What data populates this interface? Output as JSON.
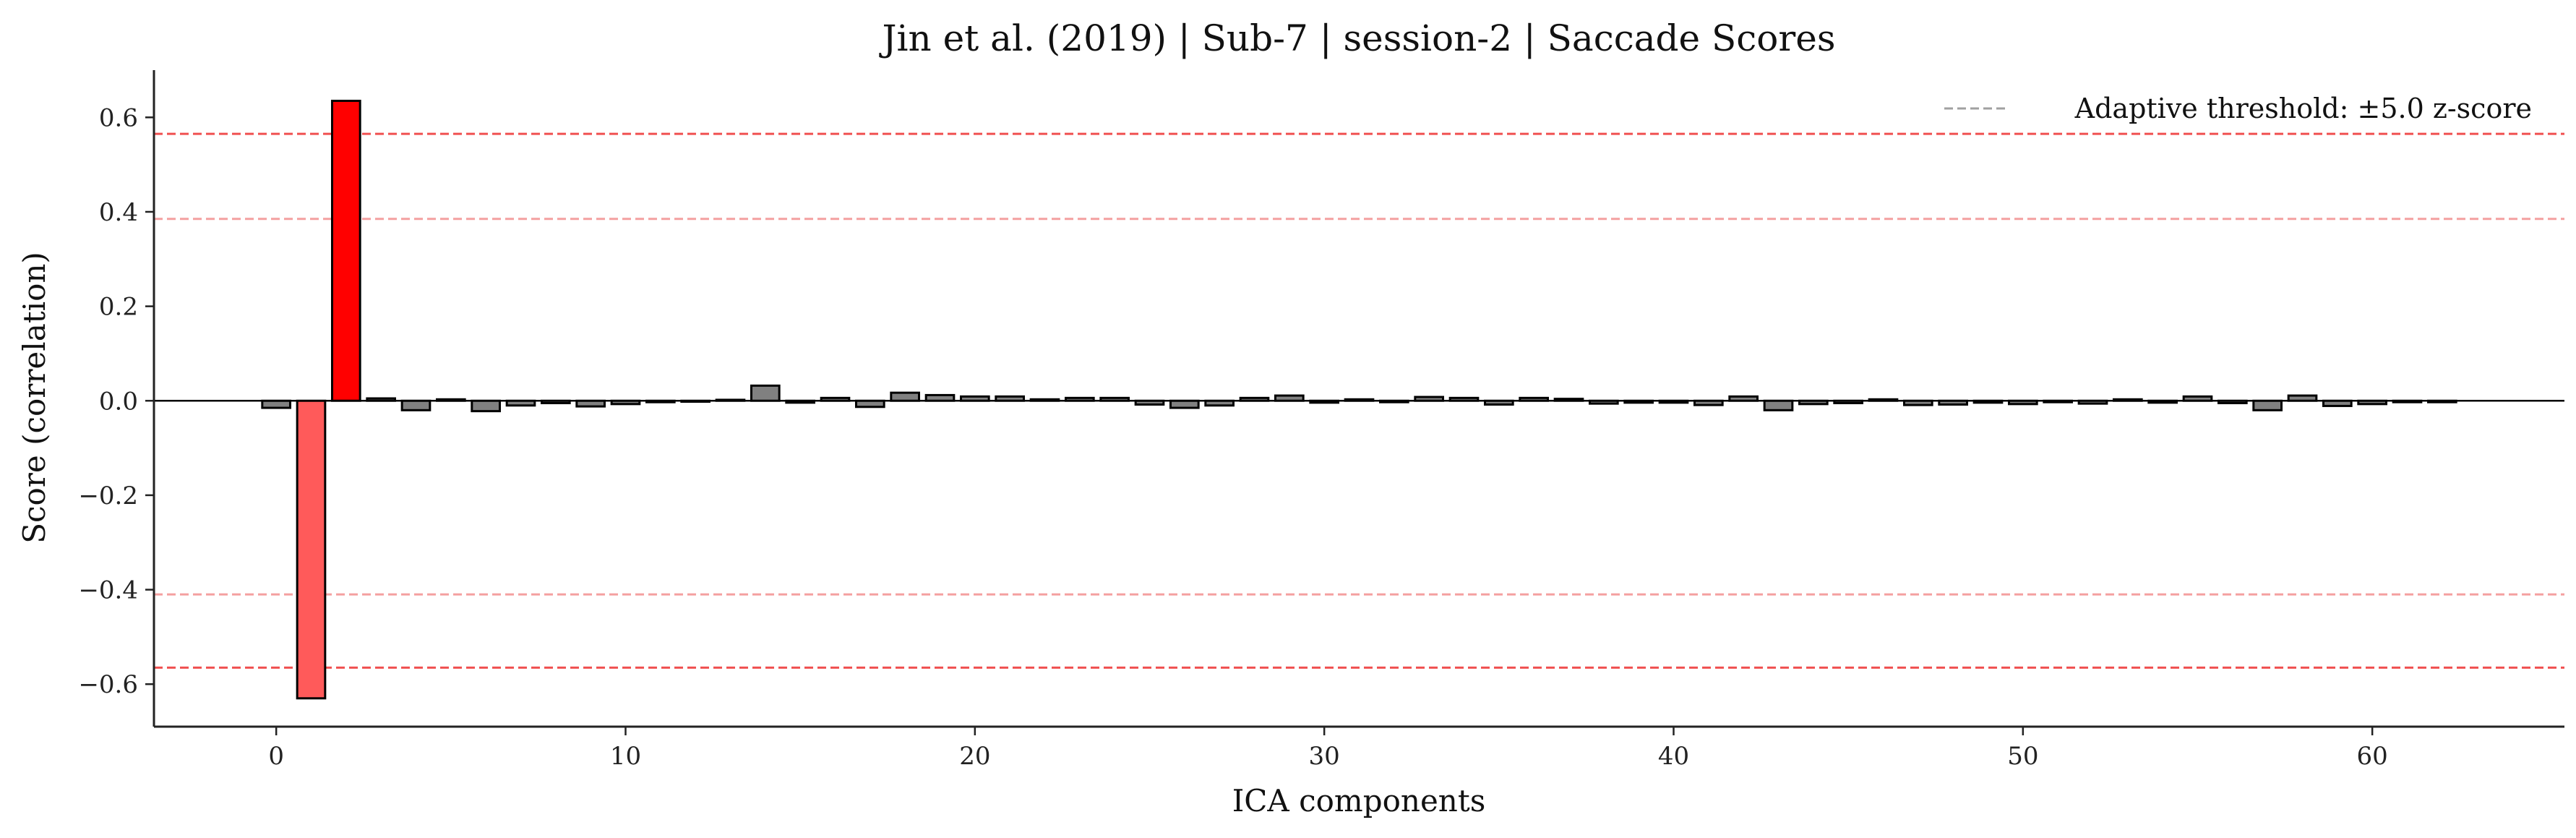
{
  "chart_data": {
    "type": "bar",
    "title": "Jin et al. (2019) | Sub-7 | session-2 | Saccade Scores",
    "xlabel": "ICA components",
    "ylabel": "Score (correlation)",
    "xlim": [
      -3.5,
      65.5
    ],
    "ylim": [
      -0.69,
      0.7
    ],
    "x_ticks": [
      0,
      10,
      20,
      30,
      40,
      50,
      60
    ],
    "y_ticks": [
      -0.6,
      -0.4,
      -0.2,
      0.0,
      0.2,
      0.4,
      0.6
    ],
    "y_tick_labels": [
      "−0.6",
      "−0.4",
      "−0.2",
      "0.0",
      "0.2",
      "0.4",
      "0.6"
    ],
    "x_tick_labels": [
      "0",
      "10",
      "20",
      "30",
      "40",
      "50",
      "60"
    ],
    "legend": {
      "label": "Adaptive threshold: ±5.0 z-score",
      "position": "top-right"
    },
    "threshold_lines": [
      {
        "y": 0.565,
        "strength": "strong"
      },
      {
        "y": 0.385,
        "strength": "weak"
      },
      {
        "y": -0.41,
        "strength": "weak"
      },
      {
        "y": -0.565,
        "strength": "strong"
      }
    ],
    "components": [
      0,
      1,
      2,
      3,
      4,
      5,
      6,
      7,
      8,
      9,
      10,
      11,
      12,
      13,
      14,
      15,
      16,
      17,
      18,
      19,
      20,
      21,
      22,
      23,
      24,
      25,
      26,
      27,
      28,
      29,
      30,
      31,
      32,
      33,
      34,
      35,
      36,
      37,
      38,
      39,
      40,
      41,
      42,
      43,
      44,
      45,
      46,
      47,
      48,
      49,
      50,
      51,
      52,
      53,
      54,
      55,
      56,
      57,
      58,
      59,
      60,
      61,
      62
    ],
    "values": [
      -0.015,
      -0.63,
      0.635,
      0.005,
      -0.02,
      0.003,
      -0.022,
      -0.01,
      -0.005,
      -0.012,
      -0.007,
      -0.003,
      -0.002,
      0.002,
      0.032,
      -0.004,
      0.006,
      -0.013,
      0.017,
      0.012,
      0.009,
      0.009,
      0.003,
      0.006,
      0.006,
      -0.008,
      -0.015,
      -0.01,
      0.006,
      0.011,
      -0.004,
      0.003,
      -0.003,
      0.008,
      0.006,
      -0.008,
      0.006,
      0.004,
      -0.006,
      -0.004,
      -0.004,
      -0.009,
      0.009,
      -0.02,
      -0.007,
      -0.005,
      0.003,
      -0.009,
      -0.008,
      -0.004,
      -0.007,
      -0.003,
      -0.006,
      0.003,
      -0.004,
      0.009,
      -0.005,
      -0.02,
      0.011,
      -0.011,
      -0.007,
      -0.003,
      -0.003
    ],
    "flagged": {
      "1": "light-red",
      "2": "red"
    },
    "colors": {
      "bar_default": "#808080",
      "bar_flagged_strong": "#ff0000",
      "bar_flagged_weak": "#ff5a5a",
      "threshold_strong": "#f05050",
      "threshold_weak": "#f4a0a0",
      "legend_line": "#a0a0a0"
    }
  }
}
